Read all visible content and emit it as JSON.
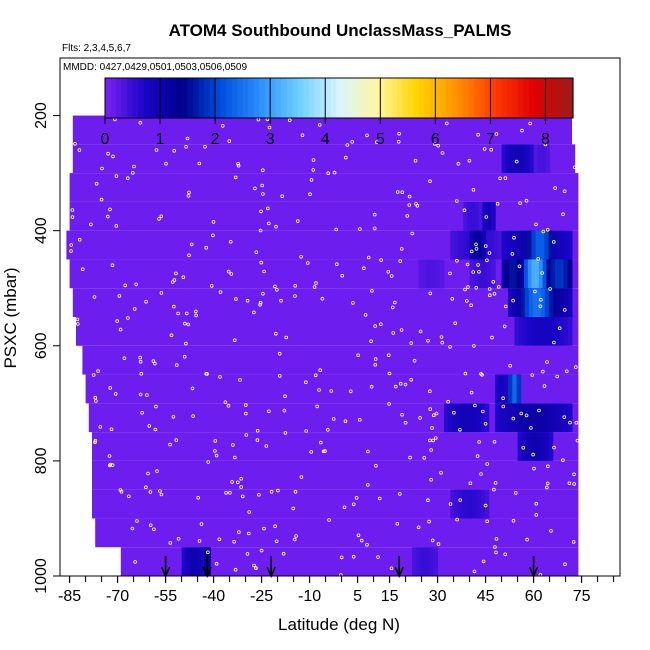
{
  "title": "ATOM4 Southbound UnclassMass_PALMS",
  "subtitle": "Flts: 2,3,4,5,6,7",
  "annotation": "MMDD: 0427,0429,0501,0503,0506,0509",
  "chart_data": {
    "type": "heatmap",
    "title": "ATOM4 Southbound UnclassMass_PALMS",
    "xlabel": "Latitude (deg N)",
    "ylabel": "PSXC (mbar)",
    "xlim": [
      -88,
      87
    ],
    "ylim": [
      1000,
      100
    ],
    "x_ticks": [
      -85,
      -70,
      -55,
      -40,
      -25,
      -10,
      5,
      15,
      30,
      45,
      60,
      75
    ],
    "y_ticks": [
      200,
      400,
      600,
      800,
      1000
    ],
    "colorbar": {
      "ticks": [
        0,
        1,
        2,
        3,
        4,
        5,
        6,
        7,
        8
      ],
      "range": [
        0,
        8.5
      ],
      "colors": [
        "#7b22f5",
        "#1a05c8",
        "#00008c",
        "#0050e0",
        "#2f8fff",
        "#6fd0ff",
        "#d8f4ff",
        "#fff6a0",
        "#ffd400",
        "#ff9400",
        "#ff3a00",
        "#e00000",
        "#9b1c1c"
      ]
    },
    "background_value": 0.1,
    "coverage": [
      {
        "p": 175,
        "x0": -53,
        "x1": 72
      },
      {
        "p": 225,
        "x0": -84,
        "x1": 72
      },
      {
        "p": 275,
        "x0": -84,
        "x1": 73
      },
      {
        "p": 325,
        "x0": -85,
        "x1": 74
      },
      {
        "p": 375,
        "x0": -85,
        "x1": 74
      },
      {
        "p": 425,
        "x0": -86,
        "x1": 74
      },
      {
        "p": 475,
        "x0": -85,
        "x1": 74
      },
      {
        "p": 525,
        "x0": -84,
        "x1": 74
      },
      {
        "p": 575,
        "x0": -83,
        "x1": 74
      },
      {
        "p": 625,
        "x0": -81,
        "x1": 74
      },
      {
        "p": 675,
        "x0": -80,
        "x1": 74
      },
      {
        "p": 725,
        "x0": -79,
        "x1": 74
      },
      {
        "p": 775,
        "x0": -78,
        "x1": 74
      },
      {
        "p": 825,
        "x0": -78,
        "x1": 74
      },
      {
        "p": 875,
        "x0": -78,
        "x1": 74
      },
      {
        "p": 925,
        "x0": -77,
        "x1": 74
      },
      {
        "p": 975,
        "x0": -69,
        "x1": 74
      }
    ],
    "cells": [
      {
        "lat": [
          50,
          60
        ],
        "p": [
          250,
          300
        ],
        "v": 0.9
      },
      {
        "lat": [
          60,
          65
        ],
        "p": [
          250,
          300
        ],
        "v": 0.4
      },
      {
        "lat": [
          38,
          44
        ],
        "p": [
          350,
          400
        ],
        "v": 0.5
      },
      {
        "lat": [
          44,
          48
        ],
        "p": [
          350,
          400
        ],
        "v": 0.9
      },
      {
        "lat": [
          34,
          50
        ],
        "p": [
          400,
          450
        ],
        "v": 0.6
      },
      {
        "lat": [
          40,
          45
        ],
        "p": [
          400,
          450
        ],
        "v": 1.3
      },
      {
        "lat": [
          50,
          72
        ],
        "p": [
          400,
          450
        ],
        "v": 1.1
      },
      {
        "lat": [
          58,
          66
        ],
        "p": [
          400,
          450
        ],
        "v": 2.3
      },
      {
        "lat": [
          24,
          32
        ],
        "p": [
          450,
          500
        ],
        "v": 0.35
      },
      {
        "lat": [
          40,
          48
        ],
        "p": [
          450,
          500
        ],
        "v": 0.5
      },
      {
        "lat": [
          50,
          57
        ],
        "p": [
          450,
          500
        ],
        "v": 1.6
      },
      {
        "lat": [
          57,
          64
        ],
        "p": [
          450,
          500
        ],
        "v": 3.2
      },
      {
        "lat": [
          64,
          72
        ],
        "p": [
          450,
          500
        ],
        "v": 1.9
      },
      {
        "lat": [
          52,
          72
        ],
        "p": [
          500,
          550
        ],
        "v": 1.4
      },
      {
        "lat": [
          56,
          66
        ],
        "p": [
          500,
          550
        ],
        "v": 2.5
      },
      {
        "lat": [
          54,
          72
        ],
        "p": [
          550,
          600
        ],
        "v": 0.8
      },
      {
        "lat": [
          48,
          52
        ],
        "p": [
          650,
          700
        ],
        "v": 0.9
      },
      {
        "lat": [
          52,
          56
        ],
        "p": [
          650,
          700
        ],
        "v": 2.4
      },
      {
        "lat": [
          32,
          46
        ],
        "p": [
          700,
          750
        ],
        "v": 0.9
      },
      {
        "lat": [
          48,
          72
        ],
        "p": [
          700,
          750
        ],
        "v": 1.1
      },
      {
        "lat": [
          55,
          66
        ],
        "p": [
          750,
          800
        ],
        "v": 1.0
      },
      {
        "lat": [
          34,
          46
        ],
        "p": [
          850,
          900
        ],
        "v": 0.6
      },
      {
        "lat": [
          -50,
          -42
        ],
        "p": [
          950,
          1000
        ],
        "v": 1.0
      },
      {
        "lat": [
          -43,
          -41
        ],
        "p": [
          950,
          1000
        ],
        "v": 1.5
      },
      {
        "lat": [
          22,
          30
        ],
        "p": [
          950,
          1000
        ],
        "v": 0.5
      }
    ],
    "arrows_latitude": [
      -55,
      -42,
      -22,
      18,
      60
    ]
  }
}
